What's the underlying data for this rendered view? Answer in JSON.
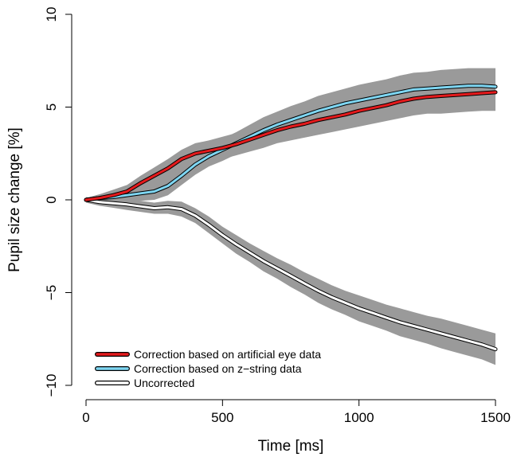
{
  "chart_data": {
    "type": "line",
    "title": "",
    "xlabel": "Time [ms]",
    "ylabel": "Pupil size change [%]",
    "xlim": [
      0,
      1500
    ],
    "ylim": [
      -10,
      10
    ],
    "xticks": [
      0,
      500,
      1000,
      1500
    ],
    "yticks": [
      -10,
      -5,
      0,
      5,
      10
    ],
    "xtick_labels": [
      "0",
      "500",
      "1000",
      "1500"
    ],
    "ytick_labels": [
      "−10",
      "−5",
      "0",
      "5",
      "10"
    ],
    "grid": false,
    "legend_position": "bottom-left",
    "x": [
      0,
      50,
      100,
      150,
      200,
      250,
      300,
      350,
      400,
      450,
      500,
      550,
      600,
      650,
      700,
      750,
      800,
      850,
      900,
      950,
      1000,
      1050,
      1100,
      1150,
      1200,
      1250,
      1300,
      1350,
      1400,
      1450,
      1500
    ],
    "series": [
      {
        "name": "Correction based on artificial eye data",
        "color": "#e41a1c",
        "values": [
          0,
          0.1,
          0.25,
          0.45,
          0.9,
          1.3,
          1.7,
          2.2,
          2.5,
          2.65,
          2.8,
          3.0,
          3.25,
          3.5,
          3.75,
          3.95,
          4.1,
          4.3,
          4.45,
          4.6,
          4.8,
          4.95,
          5.1,
          5.3,
          5.45,
          5.55,
          5.6,
          5.65,
          5.7,
          5.75,
          5.8
        ],
        "band_halfwidth": [
          0.1,
          0.2,
          0.3,
          0.35,
          0.4,
          0.45,
          0.5,
          0.5,
          0.55,
          0.55,
          0.6,
          0.6,
          0.65,
          0.7,
          0.7,
          0.75,
          0.75,
          0.8,
          0.8,
          0.8,
          0.85,
          0.85,
          0.85,
          0.9,
          0.9,
          0.9,
          0.95,
          0.95,
          0.95,
          0.95,
          1.0
        ],
        "band_color": "#9a9a9a"
      },
      {
        "name": "Correction based on z−string data",
        "color": "#7ed6f2",
        "values": [
          0,
          0.1,
          0.15,
          0.25,
          0.35,
          0.45,
          0.75,
          1.3,
          1.9,
          2.35,
          2.7,
          3.05,
          3.4,
          3.75,
          4.05,
          4.3,
          4.55,
          4.8,
          5.0,
          5.2,
          5.35,
          5.5,
          5.65,
          5.8,
          5.95,
          6.0,
          6.05,
          6.1,
          6.15,
          6.15,
          6.1
        ],
        "band_halfwidth": [
          0.1,
          0.2,
          0.3,
          0.35,
          0.4,
          0.45,
          0.5,
          0.5,
          0.55,
          0.55,
          0.6,
          0.6,
          0.65,
          0.7,
          0.7,
          0.75,
          0.75,
          0.8,
          0.8,
          0.8,
          0.85,
          0.85,
          0.85,
          0.9,
          0.9,
          0.9,
          0.95,
          0.95,
          0.95,
          0.95,
          1.0
        ],
        "band_color": "#9a9a9a"
      },
      {
        "name": "Uncorrected",
        "color": "#ffffff",
        "values": [
          0,
          -0.12,
          -0.18,
          -0.25,
          -0.35,
          -0.45,
          -0.4,
          -0.5,
          -0.85,
          -1.35,
          -1.9,
          -2.4,
          -2.85,
          -3.3,
          -3.7,
          -4.1,
          -4.5,
          -4.9,
          -5.25,
          -5.55,
          -5.85,
          -6.1,
          -6.35,
          -6.6,
          -6.8,
          -7.0,
          -7.2,
          -7.4,
          -7.6,
          -7.8,
          -8.05
        ],
        "band_halfwidth": [
          0.15,
          0.2,
          0.25,
          0.3,
          0.3,
          0.3,
          0.35,
          0.4,
          0.4,
          0.45,
          0.45,
          0.5,
          0.5,
          0.55,
          0.55,
          0.6,
          0.6,
          0.65,
          0.65,
          0.65,
          0.7,
          0.7,
          0.7,
          0.75,
          0.75,
          0.75,
          0.8,
          0.8,
          0.8,
          0.8,
          0.85
        ],
        "band_color": "#9a9a9a"
      }
    ]
  }
}
